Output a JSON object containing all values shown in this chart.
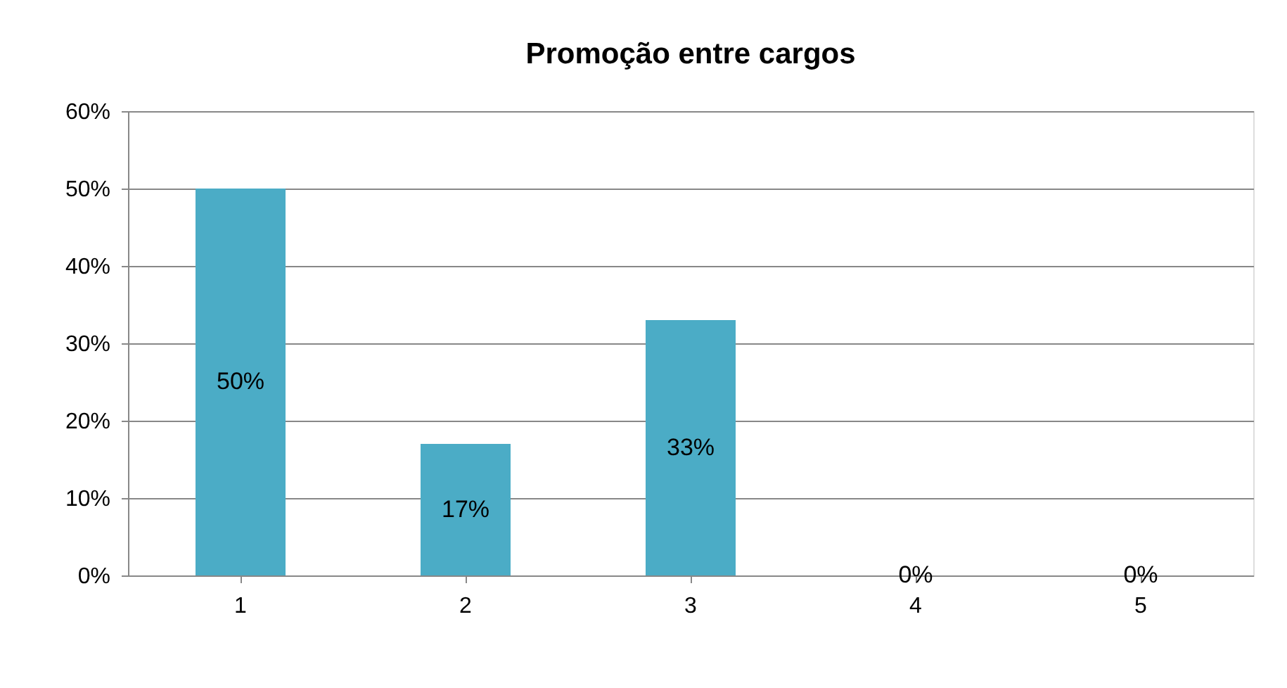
{
  "chart_data": {
    "type": "bar",
    "title": "Promoção entre cargos",
    "categories": [
      "1",
      "2",
      "3",
      "4",
      "5"
    ],
    "values": [
      50,
      17,
      33,
      0,
      0
    ],
    "value_labels": [
      "50%",
      "17%",
      "33%",
      "0%",
      "0%"
    ],
    "color": "#4bacc6",
    "ylim": [
      0,
      60
    ],
    "yticks": [
      {
        "value": 0,
        "label": "0%"
      },
      {
        "value": 10,
        "label": "10%"
      },
      {
        "value": 20,
        "label": "20%"
      },
      {
        "value": 30,
        "label": "30%"
      },
      {
        "value": 40,
        "label": "40%"
      },
      {
        "value": 50,
        "label": "50%"
      },
      {
        "value": 60,
        "label": "60%"
      }
    ],
    "grid": "y"
  }
}
